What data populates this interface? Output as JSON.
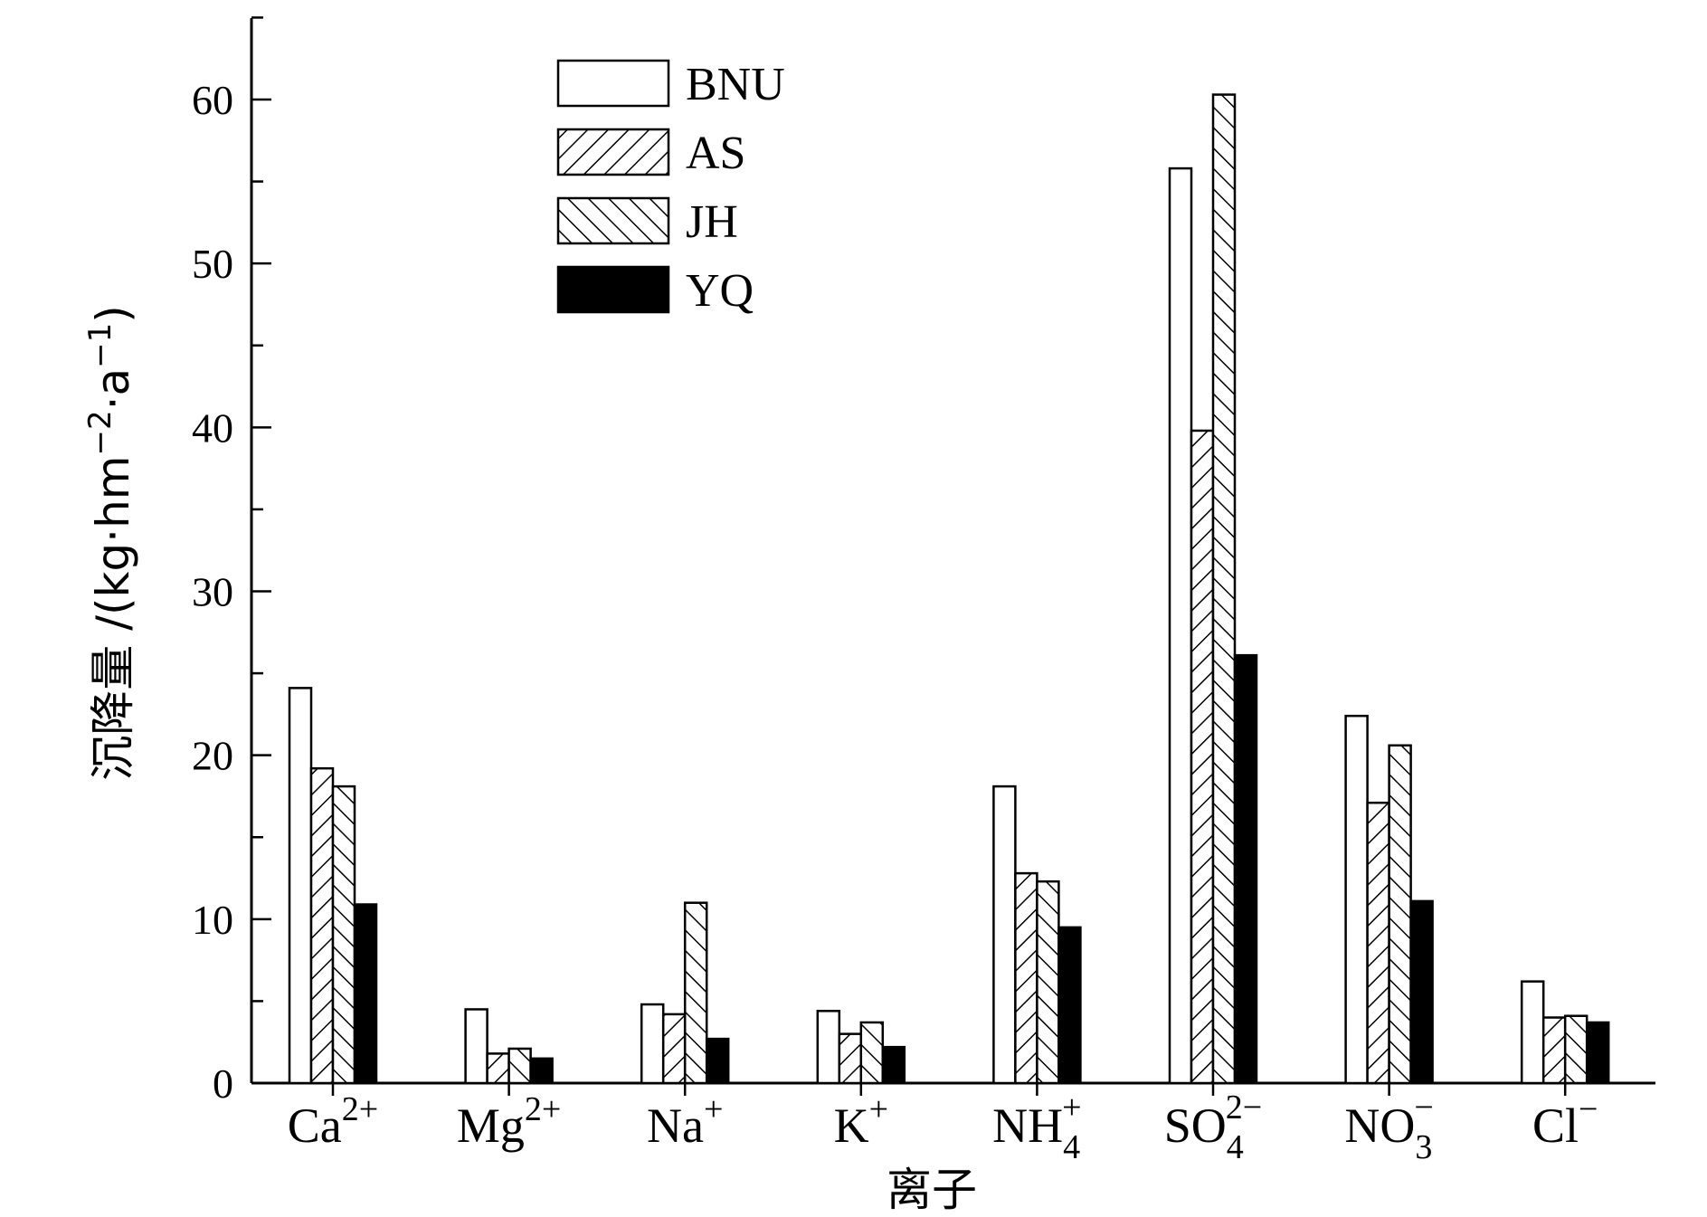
{
  "chart_data": {
    "type": "bar",
    "categories": [
      {
        "base": "Ca",
        "sup": "2+",
        "sub": ""
      },
      {
        "base": "Mg",
        "sup": "2+",
        "sub": ""
      },
      {
        "base": "Na",
        "sup": "+",
        "sub": ""
      },
      {
        "base": "K",
        "sup": "+",
        "sub": ""
      },
      {
        "base": "NH",
        "sup": "+",
        "sub": "4"
      },
      {
        "base": "SO",
        "sup": "2−",
        "sub": "4"
      },
      {
        "base": "NO",
        "sup": "−",
        "sub": "3"
      },
      {
        "base": "Cl",
        "sup": "−",
        "sub": ""
      }
    ],
    "series": [
      {
        "name": "BNU",
        "fill": "white",
        "values": [
          24.1,
          4.5,
          4.8,
          4.4,
          18.1,
          55.8,
          22.4,
          6.2
        ]
      },
      {
        "name": "AS",
        "fill": "hatch-forward",
        "values": [
          19.2,
          1.8,
          4.2,
          3.0,
          12.8,
          39.8,
          17.1,
          4.0
        ]
      },
      {
        "name": "JH",
        "fill": "hatch-back",
        "values": [
          18.1,
          2.1,
          11.0,
          3.7,
          12.3,
          60.3,
          20.6,
          4.1
        ]
      },
      {
        "name": "YQ",
        "fill": "black",
        "values": [
          10.9,
          1.5,
          2.7,
          2.2,
          9.5,
          26.1,
          11.1,
          3.7
        ]
      }
    ],
    "xlabel": "离子",
    "ylabel": {
      "main": "沉降量 /(kg·hm",
      "sup1": "−2",
      "mid": "·a",
      "sup2": "−1",
      "end": ")"
    },
    "yticks": [
      "0",
      "10",
      "20",
      "30",
      "40",
      "50",
      "60"
    ],
    "ylim": [
      0,
      65
    ],
    "grid": false,
    "legend_position": "top-left"
  }
}
